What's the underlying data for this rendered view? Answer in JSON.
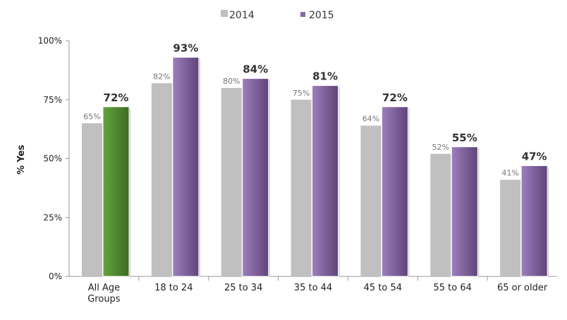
{
  "chart_data": {
    "type": "bar",
    "title": "",
    "xlabel": "",
    "ylabel": "% Yes",
    "ylim": [
      0,
      100
    ],
    "yticks": [
      "0%",
      "25%",
      "50%",
      "75%",
      "100%"
    ],
    "categories": [
      [
        "All Age",
        "Groups"
      ],
      [
        "18 to 24"
      ],
      [
        "25 to 34"
      ],
      [
        "35 to 44"
      ],
      [
        "45 to 54"
      ],
      [
        "55 to 64"
      ],
      [
        "65 or older"
      ]
    ],
    "series": [
      {
        "name": "2014",
        "values": [
          65,
          82,
          80,
          75,
          64,
          52,
          41
        ],
        "labels": [
          "65%",
          "82%",
          "80%",
          "75%",
          "64%",
          "52%",
          "41%"
        ],
        "color": "#c0c0c0"
      },
      {
        "name": "2015",
        "values": [
          72,
          93,
          84,
          81,
          72,
          55,
          47
        ],
        "labels": [
          "72%",
          "93%",
          "84%",
          "81%",
          "72%",
          "55%",
          "47%"
        ],
        "color": "#8a6aa8",
        "highlight_color": "#4f8a2e"
      }
    ],
    "legend": "top-center",
    "grid": false
  }
}
